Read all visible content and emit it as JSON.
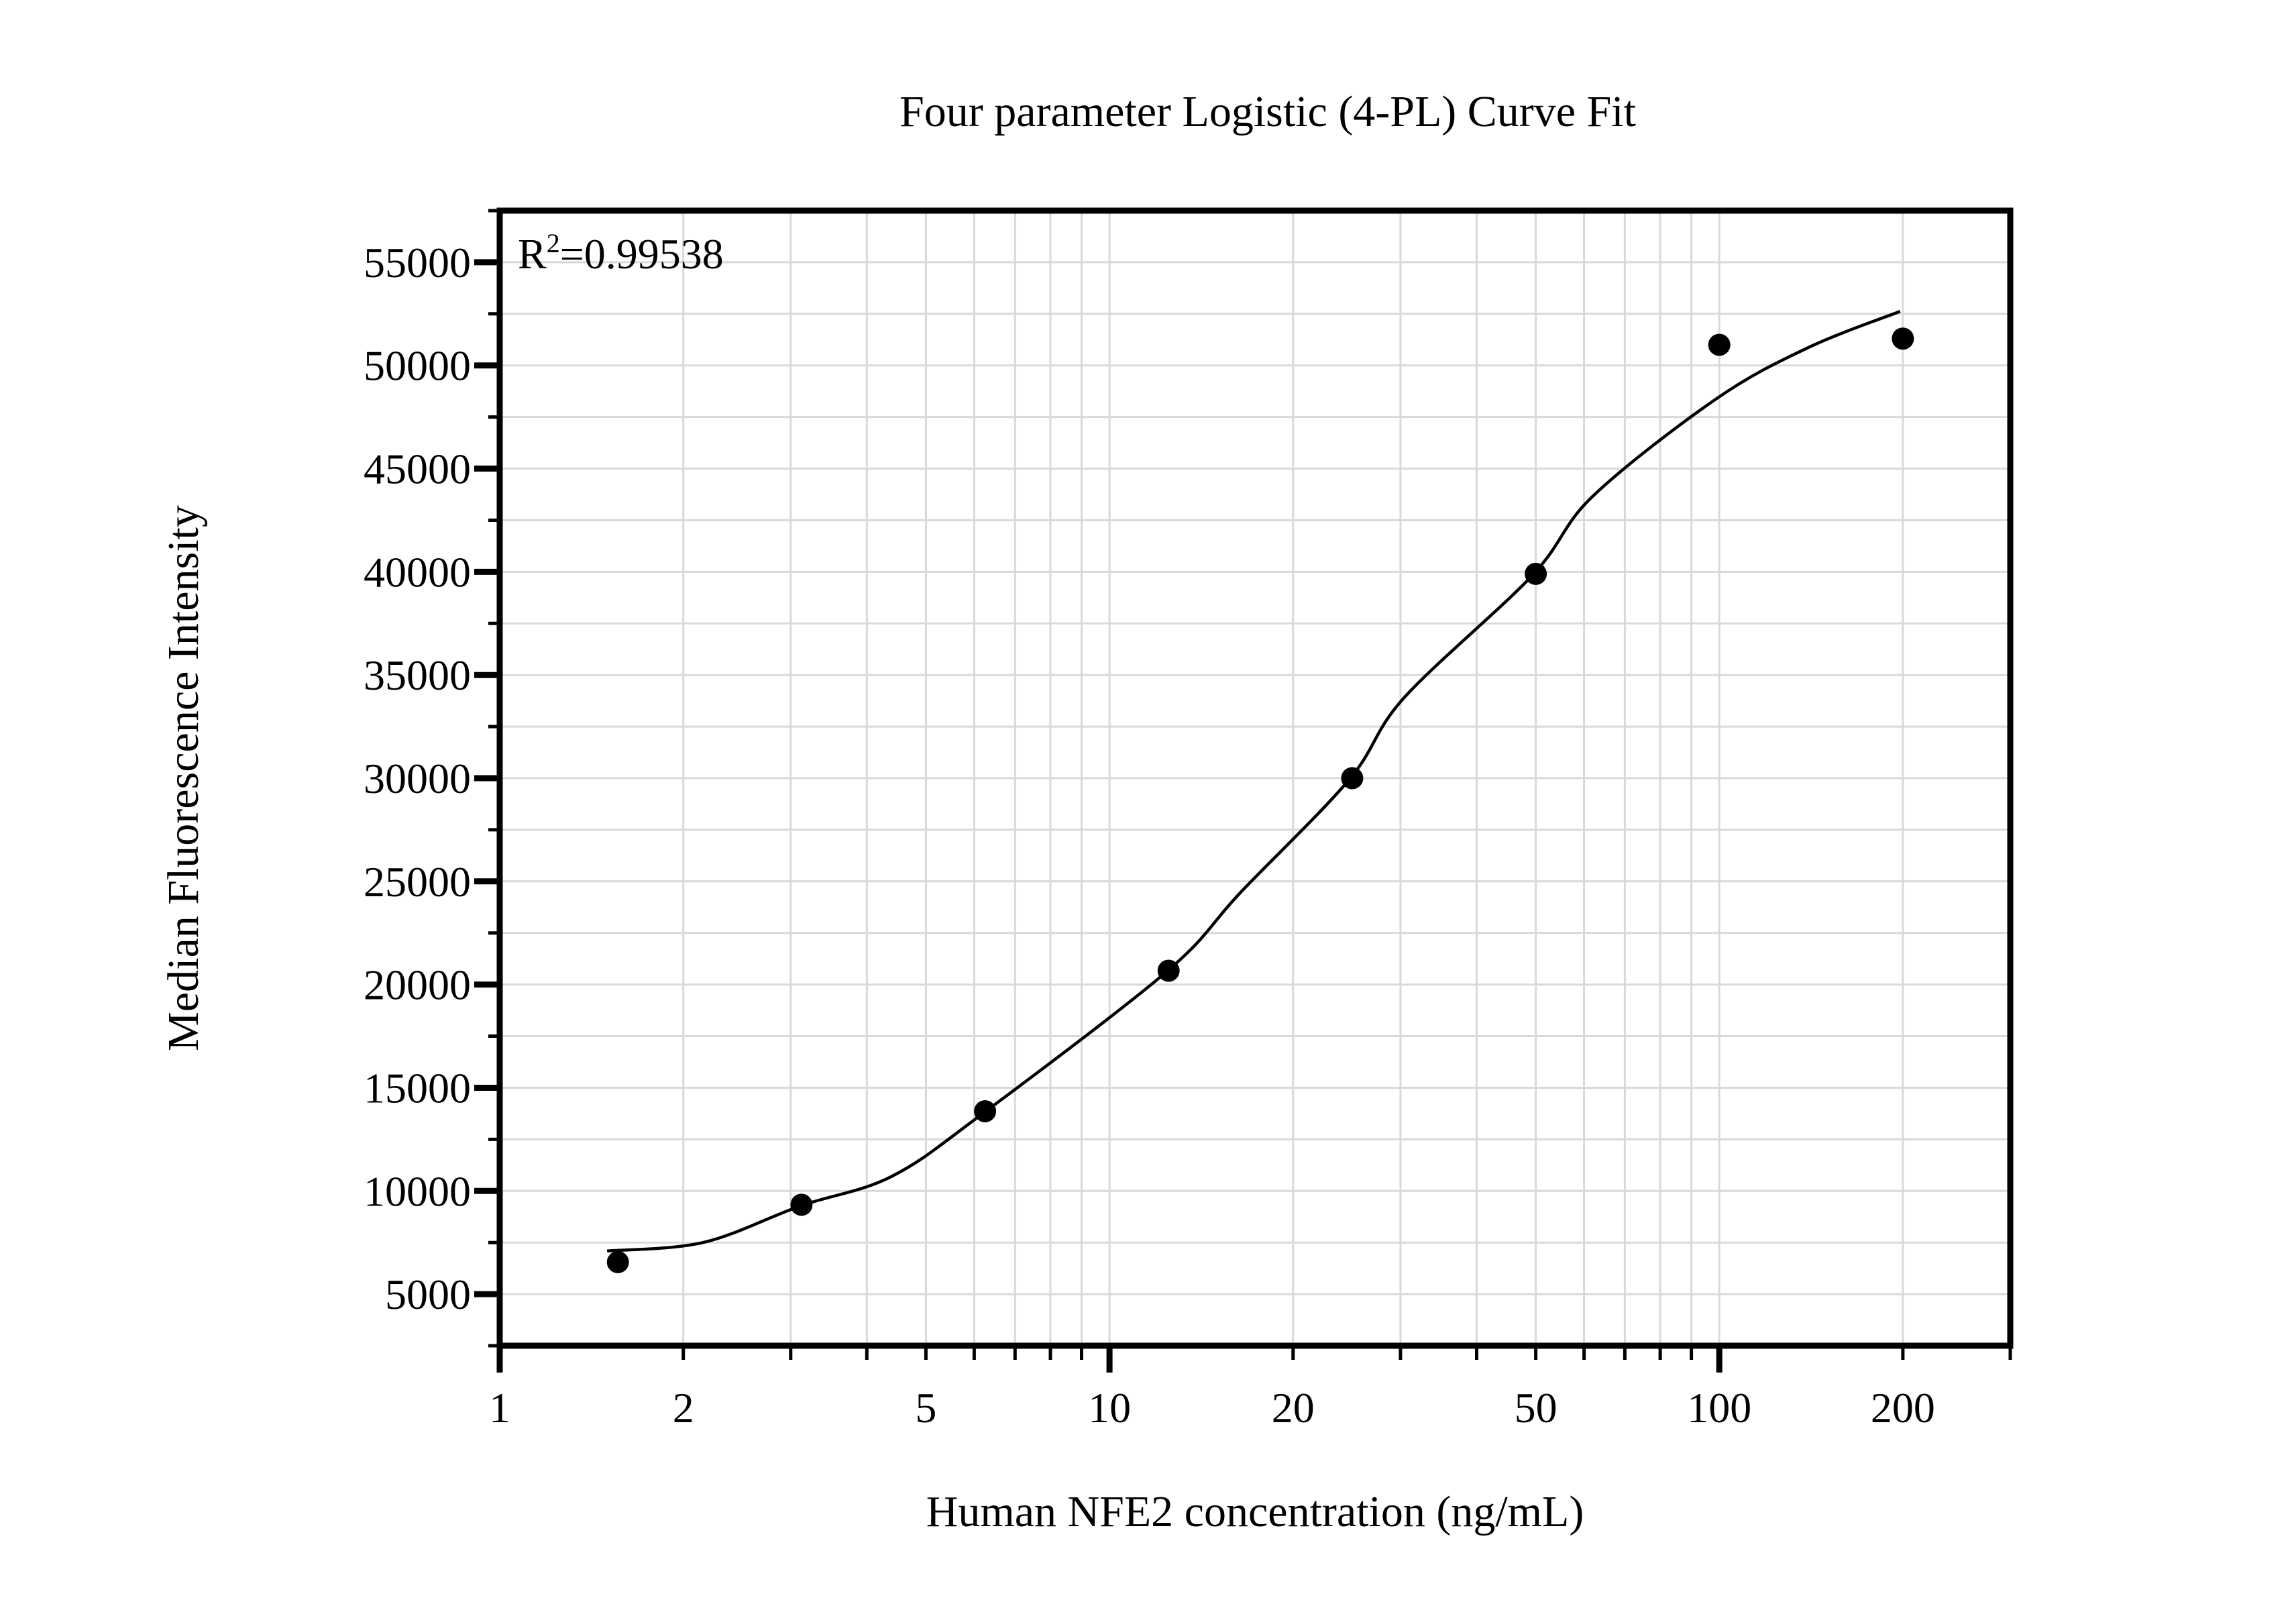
{
  "title": "Four parameter Logistic (4-PL) Curve Fit",
  "annotation": {
    "base": "R",
    "sup": "2",
    "rest": "=0.99538"
  },
  "colors": {
    "background": "#ffffff",
    "grid": "#d9d9d9",
    "axis": "#000000",
    "text": "#000000",
    "marker": "#000000",
    "curve": "#000000"
  },
  "chart_data": {
    "type": "scatter",
    "title": "Four parameter Logistic (4-PL) Curve Fit",
    "xlabel": "Human NFE2 concentration (ng/mL)",
    "ylabel": "Median Fluorescence Intensity",
    "x_scale": "log",
    "y_scale": "linear",
    "xlim": [
      1,
      300
    ],
    "ylim": [
      2500,
      57500
    ],
    "grid": true,
    "legend": false,
    "r_squared": 0.99538,
    "x_tick_labels": [
      1,
      2,
      5,
      10,
      20,
      50,
      100,
      200
    ],
    "x_minor_ticks": [
      1,
      2,
      3,
      4,
      5,
      6,
      7,
      8,
      9,
      10,
      20,
      30,
      40,
      50,
      60,
      70,
      80,
      90,
      100,
      200,
      300
    ],
    "x_decade_ticks": [
      1,
      10,
      100
    ],
    "y_major_ticks": [
      5000,
      10000,
      15000,
      20000,
      25000,
      30000,
      35000,
      40000,
      45000,
      50000,
      55000
    ],
    "y_minor_step": 2500,
    "series": [
      {
        "name": "standard-points",
        "marker": "filled-circle",
        "points": [
          {
            "x": 1.5625,
            "y": 6550
          },
          {
            "x": 3.125,
            "y": 9330
          },
          {
            "x": 6.25,
            "y": 13860
          },
          {
            "x": 12.5,
            "y": 20670
          },
          {
            "x": 25,
            "y": 30000
          },
          {
            "x": 50,
            "y": 39900
          },
          {
            "x": 100,
            "y": 51000
          },
          {
            "x": 200,
            "y": 51300
          }
        ]
      }
    ],
    "fit_curve": [
      {
        "x": 1.5,
        "y": 7090
      },
      {
        "x": 2.16,
        "y": 7510
      },
      {
        "x": 3.11,
        "y": 9270
      },
      {
        "x": 4.39,
        "y": 10700
      },
      {
        "x": 6.22,
        "y": 13790
      },
      {
        "x": 12.4,
        "y": 20620
      },
      {
        "x": 16.4,
        "y": 24460
      },
      {
        "x": 24.7,
        "y": 29920
      },
      {
        "x": 30.4,
        "y": 33890
      },
      {
        "x": 49.3,
        "y": 39810
      },
      {
        "x": 61.9,
        "y": 43640
      },
      {
        "x": 98.6,
        "y": 48360
      },
      {
        "x": 140,
        "y": 50870
      },
      {
        "x": 198,
        "y": 52620
      }
    ]
  }
}
